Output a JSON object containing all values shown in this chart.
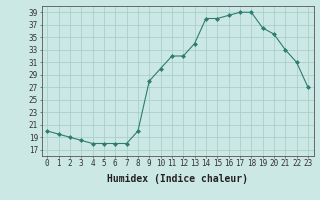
{
  "x": [
    0,
    1,
    2,
    3,
    4,
    5,
    6,
    7,
    8,
    9,
    10,
    11,
    12,
    13,
    14,
    15,
    16,
    17,
    18,
    19,
    20,
    21,
    22,
    23
  ],
  "y": [
    20,
    19.5,
    19,
    18.5,
    18,
    18,
    18,
    18,
    20,
    28,
    30,
    32,
    32,
    34,
    38,
    38,
    38.5,
    39,
    39,
    36.5,
    35.5,
    33,
    31,
    27
  ],
  "line_color": "#2e7d6e",
  "marker": "D",
  "marker_size": 2,
  "bg_color": "#cce8e4",
  "grid_color": "#aad0cc",
  "xlabel": "Humidex (Indice chaleur)",
  "xlim": [
    -0.5,
    23.5
  ],
  "ylim": [
    16,
    40
  ],
  "yticks": [
    17,
    19,
    21,
    23,
    25,
    27,
    29,
    31,
    33,
    35,
    37,
    39
  ],
  "xticks": [
    0,
    1,
    2,
    3,
    4,
    5,
    6,
    7,
    8,
    9,
    10,
    11,
    12,
    13,
    14,
    15,
    16,
    17,
    18,
    19,
    20,
    21,
    22,
    23
  ],
  "tick_label_fontsize": 5.5,
  "xlabel_fontsize": 7
}
